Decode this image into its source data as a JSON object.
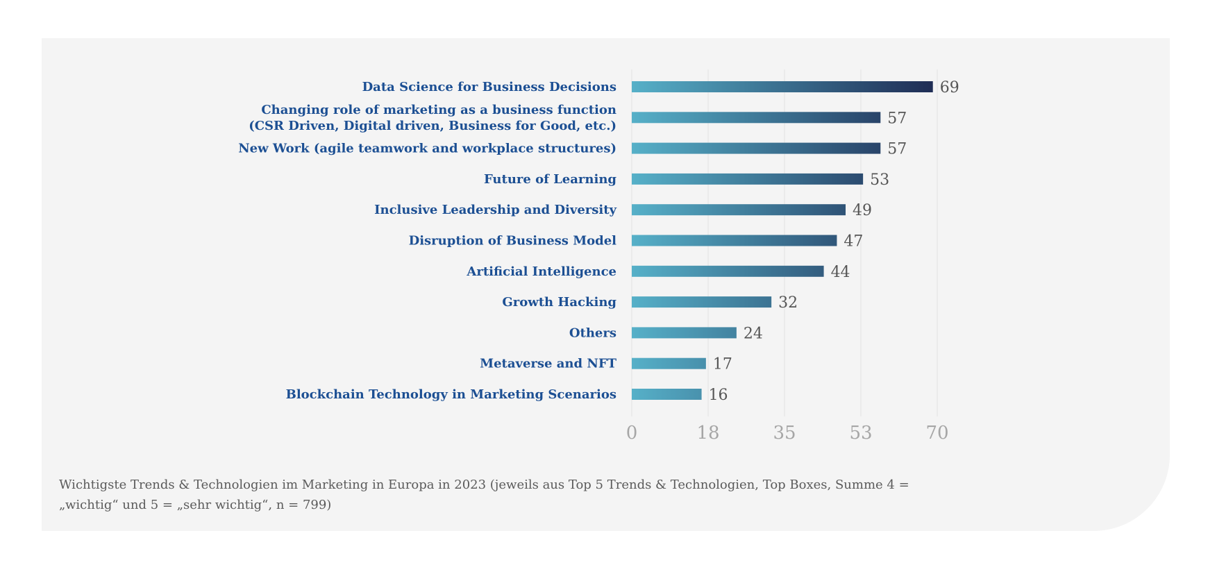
{
  "chart_data": {
    "type": "bar",
    "orientation": "horizontal",
    "categories": [
      "Data Science for Business Decisions",
      [
        "Changing role of marketing as a business function",
        "(CSR Driven, Digital driven, Business for Good, etc.)"
      ],
      "New Work (agile teamwork and workplace structures)",
      "Future of Learning",
      "Inclusive Leadership and Diversity",
      "Disruption of Business Model",
      "Artificial Intelligence",
      "Growth Hacking",
      "Others",
      "Metaverse and NFT",
      "Blockchain Technology in Marketing Scenarios"
    ],
    "values": [
      69,
      57,
      57,
      53,
      49,
      47,
      44,
      32,
      24,
      17,
      16
    ],
    "xlim": [
      0,
      70
    ],
    "xticks": [
      0,
      17.5,
      35,
      52.5,
      70
    ],
    "xtick_labels": [
      "0",
      "18",
      "35",
      "53",
      "70"
    ],
    "grid": true,
    "colors": {
      "bar_start": "#56b0c8",
      "bar_end": "#1f2d55",
      "category_text": "#1c4f93",
      "value_text": "#555555",
      "tick_text": "#a6a6a6"
    }
  },
  "caption": "Wichtigste Trends & Technologien im Marketing in Europa in 2023 (jeweils aus Top 5 Trends & Technologien, Top Boxes, Summe 4 = „wichtig“ und 5 = „sehr wichtig“, n = 799)"
}
